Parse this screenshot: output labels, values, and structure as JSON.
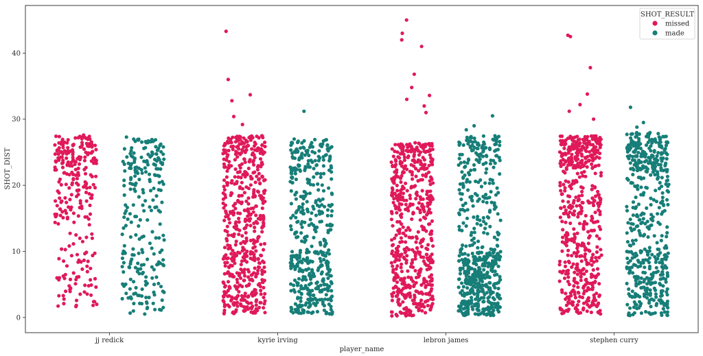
{
  "chart_data": {
    "type": "scatter",
    "style": "strip plot with horizontal jitter",
    "xlabel": "player_name",
    "ylabel": "SHOT_DIST",
    "categories": [
      "jj redick",
      "kyrie irving",
      "lebron james",
      "stephen curry"
    ],
    "ylim": [
      -2.3,
      47.2
    ],
    "yticks": [
      0,
      10,
      20,
      30,
      40
    ],
    "grid": false,
    "legend": {
      "title": "SHOT_RESULT",
      "position": "top-right",
      "entries": [
        {
          "label": "missed",
          "color": "#e0195a"
        },
        {
          "label": "made",
          "color": "#177e78"
        }
      ]
    },
    "series": [
      {
        "name": "missed",
        "color": "#e0195a",
        "offset": -0.2,
        "groups": {
          "jj redick": {
            "count": 270,
            "dist": [
              [
                0.35,
                21,
                27.5
              ],
              [
                0.12,
                23,
                26.5
              ],
              [
                0.28,
                14,
                21
              ],
              [
                0.25,
                1.5,
                13
              ]
            ],
            "outliers": [
              27.6
            ]
          },
          "kyrie irving": {
            "count": 560,
            "dist": [
              [
                0.2,
                23,
                27.5
              ],
              [
                0.4,
                10,
                23
              ],
              [
                0.4,
                0.5,
                10
              ]
            ],
            "outliers": [
              43.3,
              36.0,
              33.7,
              32.8,
              30.4,
              29.2
            ]
          },
          "lebron james": {
            "count": 560,
            "dist": [
              [
                0.18,
                23,
                26.5
              ],
              [
                0.27,
                16,
                23
              ],
              [
                0.15,
                10,
                16
              ],
              [
                0.4,
                0.2,
                10
              ]
            ],
            "outliers": [
              45.0,
              43.0,
              42.0,
              41.0,
              36.8,
              34.8,
              33.6,
              33.0,
              32.0,
              31.0
            ]
          },
          "stephen curry": {
            "count": 540,
            "dist": [
              [
                0.35,
                22.5,
                27.5
              ],
              [
                0.2,
                15,
                22.5
              ],
              [
                0.12,
                10,
                15
              ],
              [
                0.33,
                0.5,
                10
              ]
            ],
            "outliers": [
              42.7,
              42.5,
              37.8,
              33.8,
              32.2,
              31.2,
              30.0
            ]
          }
        }
      },
      {
        "name": "made",
        "color": "#177e78",
        "offset": 0.2,
        "groups": {
          "jj redick": {
            "count": 250,
            "dist": [
              [
                0.45,
                19,
                27
              ],
              [
                0.2,
                10,
                19
              ],
              [
                0.35,
                0.5,
                10
              ]
            ],
            "outliers": [
              27.3
            ]
          },
          "kyrie irving": {
            "count": 480,
            "dist": [
              [
                0.2,
                22,
                27
              ],
              [
                0.3,
                10,
                22
              ],
              [
                0.5,
                0.5,
                10
              ]
            ],
            "outliers": [
              31.2
            ]
          },
          "lebron james": {
            "count": 570,
            "dist": [
              [
                0.15,
                23,
                27.5
              ],
              [
                0.22,
                10,
                23
              ],
              [
                0.63,
                0.3,
                10
              ]
            ],
            "outliers": [
              30.5,
              29.0,
              28.4
            ]
          },
          "stephen curry": {
            "count": 520,
            "dist": [
              [
                0.35,
                22,
                28
              ],
              [
                0.25,
                10,
                22
              ],
              [
                0.4,
                0.3,
                10
              ]
            ],
            "outliers": [
              31.8,
              29.5,
              28.8
            ]
          }
        }
      }
    ]
  }
}
